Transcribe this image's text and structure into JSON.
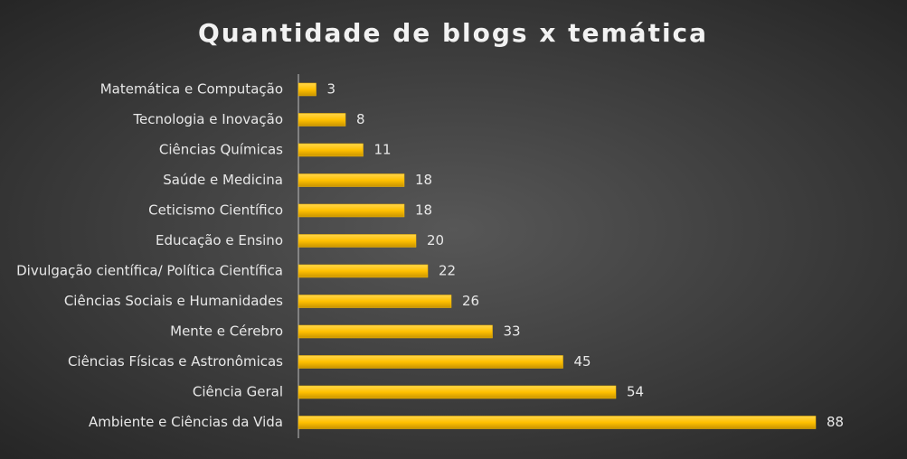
{
  "chart_data": {
    "type": "barh",
    "title": "Quantidade de blogs x temática",
    "categories": [
      "Matemática e Computação",
      "Tecnologia e Inovação",
      "Ciências Químicas",
      "Saúde e Medicina",
      "Ceticismo Científico",
      "Educação e Ensino",
      "Divulgação científica/ Política Científica",
      "Ciências Sociais e Humanidades",
      "Mente e Cérebro",
      "Ciências Físicas e Astronômicas",
      "Ciência Geral",
      "Ambiente e Ciências da Vida"
    ],
    "values": [
      3,
      8,
      11,
      18,
      18,
      20,
      22,
      26,
      33,
      45,
      54,
      88
    ],
    "color": "#ffc000"
  }
}
